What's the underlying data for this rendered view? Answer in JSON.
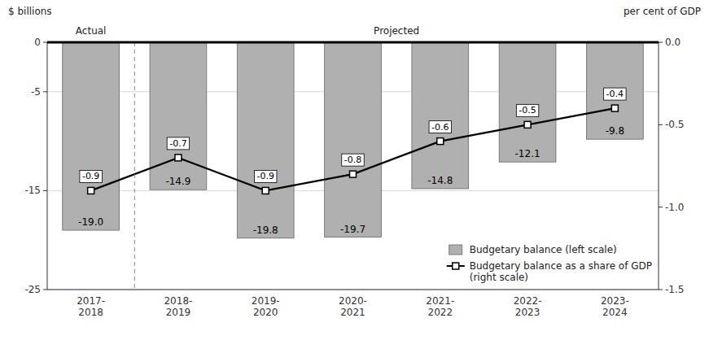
{
  "chart_data": {
    "type": "bar",
    "categories": [
      "2017-\n2018",
      "2018-\n2019",
      "2019-\n2020",
      "2020-\n2021",
      "2021-\n2022",
      "2022-\n2023",
      "2023-\n2024"
    ],
    "series": [
      {
        "name": "Budgetary balance (left scale)",
        "type": "bar",
        "color": "#b0b0b0",
        "values": [
          -19.0,
          -14.9,
          -19.8,
          -19.7,
          -14.8,
          -12.1,
          -9.8
        ],
        "value_labels": [
          "-19.0",
          "-14.9",
          "-19.8",
          "-19.7",
          "-14.8",
          "-12.1",
          "-9.8"
        ]
      },
      {
        "name": "Budgetary balance as a share of GDP\n(right scale)",
        "type": "line",
        "axis": "y2",
        "color": "#000000",
        "marker": "square",
        "values": [
          -0.9,
          -0.7,
          -0.9,
          -0.8,
          -0.6,
          -0.5,
          -0.4
        ]
      }
    ],
    "ylabel": "$ billions",
    "y2label": "per cent of GDP",
    "annotations": [
      "Actual",
      "Projected"
    ],
    "ylim": [
      -25,
      0
    ],
    "yticks": [
      0,
      -5,
      -15,
      -25
    ],
    "y2lim": [
      -1.5,
      0
    ],
    "y2ticks": [
      {
        "value": 0.0,
        "label": "0.0"
      },
      -0.5,
      {
        "value": -1.0,
        "label": "-1.0"
      },
      -1.5
    ],
    "grid": true,
    "data_labels": true,
    "legend": "lower right"
  }
}
